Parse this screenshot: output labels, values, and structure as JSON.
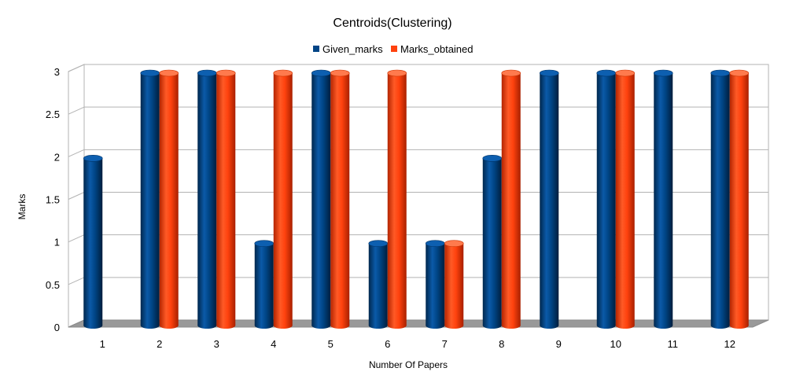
{
  "chart_data": {
    "type": "bar",
    "title": "Centroids(Clustering)",
    "xlabel": "Number Of Papers",
    "ylabel": "Marks",
    "ylim": [
      0,
      3
    ],
    "yticks": [
      "0",
      "0.5",
      "1",
      "1.5",
      "2",
      "2.5",
      "3"
    ],
    "categories": [
      "1",
      "2",
      "3",
      "4",
      "5",
      "6",
      "7",
      "8",
      "9",
      "10",
      "11",
      "12"
    ],
    "series": [
      {
        "name": "Given_marks",
        "color": "#004586",
        "values": [
          2,
          3,
          3,
          1,
          3,
          1,
          1,
          2,
          3,
          3,
          3,
          3
        ]
      },
      {
        "name": "Marks_obtained",
        "color": "#ff420e",
        "values": [
          0,
          3,
          3,
          3,
          3,
          3,
          1,
          3,
          0,
          3,
          0,
          3
        ]
      }
    ],
    "grid": true,
    "legend_position": "top-center",
    "style": "3d-cylinder"
  }
}
